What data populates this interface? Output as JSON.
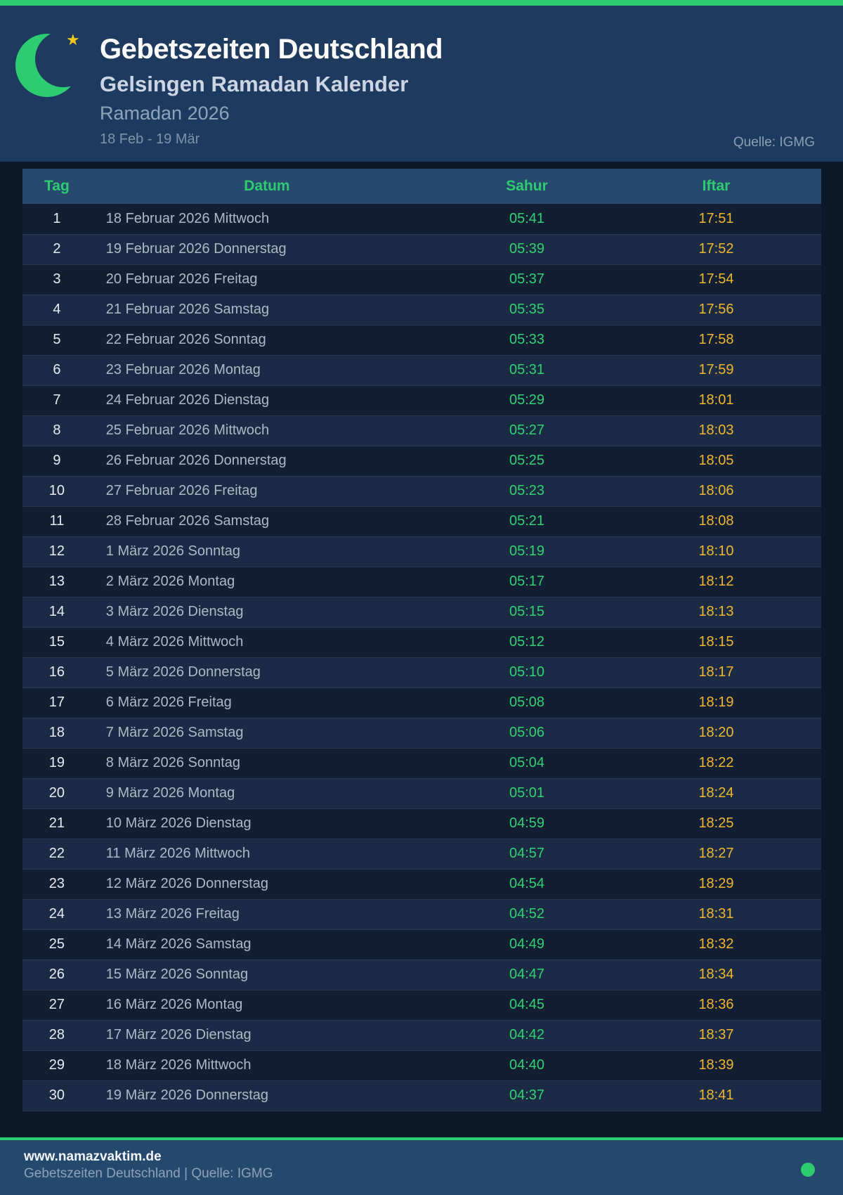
{
  "colors": {
    "accent_green": "#2ecc71",
    "sahur_green": "#31d273",
    "iftar_yellow": "#f0b72e",
    "header_bg": "#1e3a5e",
    "page_bg": "#0d1828",
    "table_header_bg": "#27496d",
    "footer_bg": "#25486d"
  },
  "header": {
    "title": "Gebetszeiten Deutschland",
    "subtitle": "Gelsingen Ramadan Kalender",
    "season": "Ramadan 2026",
    "date_range": "18 Feb - 19 Mär",
    "source": "Quelle: IGMG",
    "star_glyph": "★",
    "crescent_icon": "crescent-moon-icon"
  },
  "table": {
    "columns": [
      "Tag",
      "Datum",
      "Sahur",
      "Iftar"
    ],
    "rows": [
      {
        "tag": "1",
        "datum": "18 Februar 2026 Mittwoch",
        "sahur": "05:41",
        "iftar": "17:51"
      },
      {
        "tag": "2",
        "datum": "19 Februar 2026 Donnerstag",
        "sahur": "05:39",
        "iftar": "17:52"
      },
      {
        "tag": "3",
        "datum": "20 Februar 2026 Freitag",
        "sahur": "05:37",
        "iftar": "17:54"
      },
      {
        "tag": "4",
        "datum": "21 Februar 2026 Samstag",
        "sahur": "05:35",
        "iftar": "17:56"
      },
      {
        "tag": "5",
        "datum": "22 Februar 2026 Sonntag",
        "sahur": "05:33",
        "iftar": "17:58"
      },
      {
        "tag": "6",
        "datum": "23 Februar 2026 Montag",
        "sahur": "05:31",
        "iftar": "17:59"
      },
      {
        "tag": "7",
        "datum": "24 Februar 2026 Dienstag",
        "sahur": "05:29",
        "iftar": "18:01"
      },
      {
        "tag": "8",
        "datum": "25 Februar 2026 Mittwoch",
        "sahur": "05:27",
        "iftar": "18:03"
      },
      {
        "tag": "9",
        "datum": "26 Februar 2026 Donnerstag",
        "sahur": "05:25",
        "iftar": "18:05"
      },
      {
        "tag": "10",
        "datum": "27 Februar 2026 Freitag",
        "sahur": "05:23",
        "iftar": "18:06"
      },
      {
        "tag": "11",
        "datum": "28 Februar 2026 Samstag",
        "sahur": "05:21",
        "iftar": "18:08"
      },
      {
        "tag": "12",
        "datum": "1 März 2026 Sonntag",
        "sahur": "05:19",
        "iftar": "18:10"
      },
      {
        "tag": "13",
        "datum": "2 März 2026 Montag",
        "sahur": "05:17",
        "iftar": "18:12"
      },
      {
        "tag": "14",
        "datum": "3 März 2026 Dienstag",
        "sahur": "05:15",
        "iftar": "18:13"
      },
      {
        "tag": "15",
        "datum": "4 März 2026 Mittwoch",
        "sahur": "05:12",
        "iftar": "18:15"
      },
      {
        "tag": "16",
        "datum": "5 März 2026 Donnerstag",
        "sahur": "05:10",
        "iftar": "18:17"
      },
      {
        "tag": "17",
        "datum": "6 März 2026 Freitag",
        "sahur": "05:08",
        "iftar": "18:19"
      },
      {
        "tag": "18",
        "datum": "7 März 2026 Samstag",
        "sahur": "05:06",
        "iftar": "18:20"
      },
      {
        "tag": "19",
        "datum": "8 März 2026 Sonntag",
        "sahur": "05:04",
        "iftar": "18:22"
      },
      {
        "tag": "20",
        "datum": "9 März 2026 Montag",
        "sahur": "05:01",
        "iftar": "18:24"
      },
      {
        "tag": "21",
        "datum": "10 März 2026 Dienstag",
        "sahur": "04:59",
        "iftar": "18:25"
      },
      {
        "tag": "22",
        "datum": "11 März 2026 Mittwoch",
        "sahur": "04:57",
        "iftar": "18:27"
      },
      {
        "tag": "23",
        "datum": "12 März 2026 Donnerstag",
        "sahur": "04:54",
        "iftar": "18:29"
      },
      {
        "tag": "24",
        "datum": "13 März 2026 Freitag",
        "sahur": "04:52",
        "iftar": "18:31"
      },
      {
        "tag": "25",
        "datum": "14 März 2026 Samstag",
        "sahur": "04:49",
        "iftar": "18:32"
      },
      {
        "tag": "26",
        "datum": "15 März 2026 Sonntag",
        "sahur": "04:47",
        "iftar": "18:34"
      },
      {
        "tag": "27",
        "datum": "16 März 2026 Montag",
        "sahur": "04:45",
        "iftar": "18:36"
      },
      {
        "tag": "28",
        "datum": "17 März 2026 Dienstag",
        "sahur": "04:42",
        "iftar": "18:37"
      },
      {
        "tag": "29",
        "datum": "18 März 2026 Mittwoch",
        "sahur": "04:40",
        "iftar": "18:39"
      },
      {
        "tag": "30",
        "datum": "19 März 2026 Donnerstag",
        "sahur": "04:37",
        "iftar": "18:41"
      }
    ]
  },
  "footer": {
    "website": "www.namazvaktim.de",
    "tagline": "Gebetszeiten Deutschland | Quelle: IGMG"
  }
}
